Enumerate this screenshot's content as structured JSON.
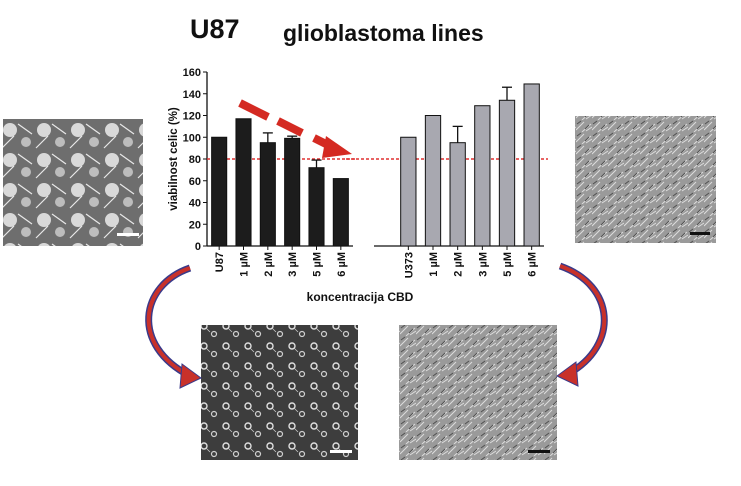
{
  "header": {
    "title": "U87",
    "subtitle": "glioblastoma lines"
  },
  "chart_data": [
    {
      "type": "bar",
      "categories": [
        "U87",
        "1 µM",
        "2 µM",
        "3 µM",
        "5 µM",
        "6 µM"
      ],
      "values": [
        100,
        117,
        95,
        99,
        72,
        62
      ],
      "errors": [
        0,
        0,
        9,
        2,
        7,
        0
      ],
      "ylabel": "viabilnost celic (%)",
      "xlabel": "koncentracija CBD",
      "ylim": [
        0,
        160
      ],
      "yticks": [
        0,
        20,
        40,
        60,
        80,
        100,
        120,
        140,
        160
      ],
      "reference_line": 80,
      "bar_color": "#1c1c1c",
      "trend_arrow": "decreasing"
    },
    {
      "type": "bar",
      "categories": [
        "U373",
        "1 µM",
        "2 µM",
        "3 µM",
        "5 µM",
        "6 µM"
      ],
      "values": [
        100,
        120,
        95,
        129,
        134,
        149
      ],
      "errors": [
        0,
        0,
        15,
        0,
        12,
        0
      ],
      "ylim": [
        0,
        160
      ],
      "reference_line": 80,
      "bar_color": "#a8a8b0"
    }
  ],
  "colors": {
    "trend_arrow": "#d42a22",
    "reference_line": "#e03030",
    "curved_arrow_fill": "#c8312a",
    "curved_arrow_outline": "#3a3a8a"
  },
  "images": [
    {
      "name": "micrograph-u87-control",
      "style": "large-cells"
    },
    {
      "name": "micrograph-u373-control",
      "style": "dense-elongated"
    },
    {
      "name": "micrograph-u87-treated",
      "style": "sparse-rounded"
    },
    {
      "name": "micrograph-u373-treated",
      "style": "dense-elongated"
    }
  ]
}
